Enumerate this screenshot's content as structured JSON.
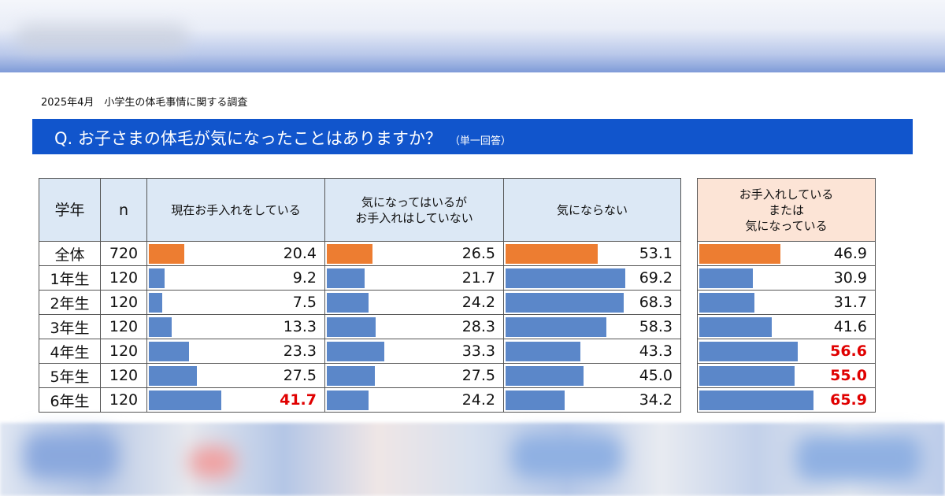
{
  "survey_title": "2025年4月　小学生の体毛事情に関する調査",
  "question": {
    "text": "Q. お子さまの体毛が気になったことはありますか？",
    "note": "（単一回答）"
  },
  "columns": {
    "grade": "学年",
    "n": "n",
    "c1": "現在お手入れをしている",
    "c2_line1": "気になってはいるが",
    "c2_line2": "お手入れはしていない",
    "c3": "気にならない",
    "c4_line1": "お手入れしている",
    "c4_line2": "または",
    "c4_line3": "気になっている"
  },
  "colors": {
    "bar": "#5b87c9",
    "bar_total": "#ed7d31",
    "header_main": "#dce8f5",
    "header_side": "#fce4d6",
    "banner": "#1155cc",
    "highlight_text": "#e00000"
  },
  "chart_data": {
    "type": "table",
    "title": "Q. お子さまの体毛が気になったことはありますか？",
    "columns": [
      "学年",
      "n",
      "現在お手入れをしている",
      "気になってはいるがお手入れはしていない",
      "気にならない",
      "お手入れしているまたは気になっている"
    ],
    "rows": [
      {
        "label": "全体",
        "n": "720",
        "values": [
          20.4,
          26.5,
          53.1,
          46.9
        ],
        "display": [
          "20.4",
          "26.5",
          "53.1",
          "46.9"
        ],
        "highlight": [
          false,
          false,
          false,
          false
        ]
      },
      {
        "label": "1年生",
        "n": "120",
        "values": [
          9.2,
          21.7,
          69.2,
          30.9
        ],
        "display": [
          "9.2",
          "21.7",
          "69.2",
          "30.9"
        ],
        "highlight": [
          false,
          false,
          false,
          false
        ]
      },
      {
        "label": "2年生",
        "n": "120",
        "values": [
          7.5,
          24.2,
          68.3,
          31.7
        ],
        "display": [
          "7.5",
          "24.2",
          "68.3",
          "31.7"
        ],
        "highlight": [
          false,
          false,
          false,
          false
        ]
      },
      {
        "label": "3年生",
        "n": "120",
        "values": [
          13.3,
          28.3,
          58.3,
          41.6
        ],
        "display": [
          "13.3",
          "28.3",
          "58.3",
          "41.6"
        ],
        "highlight": [
          false,
          false,
          false,
          false
        ]
      },
      {
        "label": "4年生",
        "n": "120",
        "values": [
          23.3,
          33.3,
          43.3,
          56.6
        ],
        "display": [
          "23.3",
          "33.3",
          "43.3",
          "56.6"
        ],
        "highlight": [
          false,
          false,
          false,
          true
        ]
      },
      {
        "label": "5年生",
        "n": "120",
        "values": [
          27.5,
          27.5,
          45.0,
          55.0
        ],
        "display": [
          "27.5",
          "27.5",
          "45.0",
          "55.0"
        ],
        "highlight": [
          false,
          false,
          false,
          true
        ]
      },
      {
        "label": "6年生",
        "n": "120",
        "values": [
          41.7,
          24.2,
          34.2,
          65.9
        ],
        "display": [
          "41.7",
          "24.2",
          "34.2",
          "65.9"
        ],
        "highlight": [
          true,
          false,
          false,
          true
        ]
      }
    ],
    "unit": "%",
    "xlim": [
      0,
      100
    ]
  }
}
